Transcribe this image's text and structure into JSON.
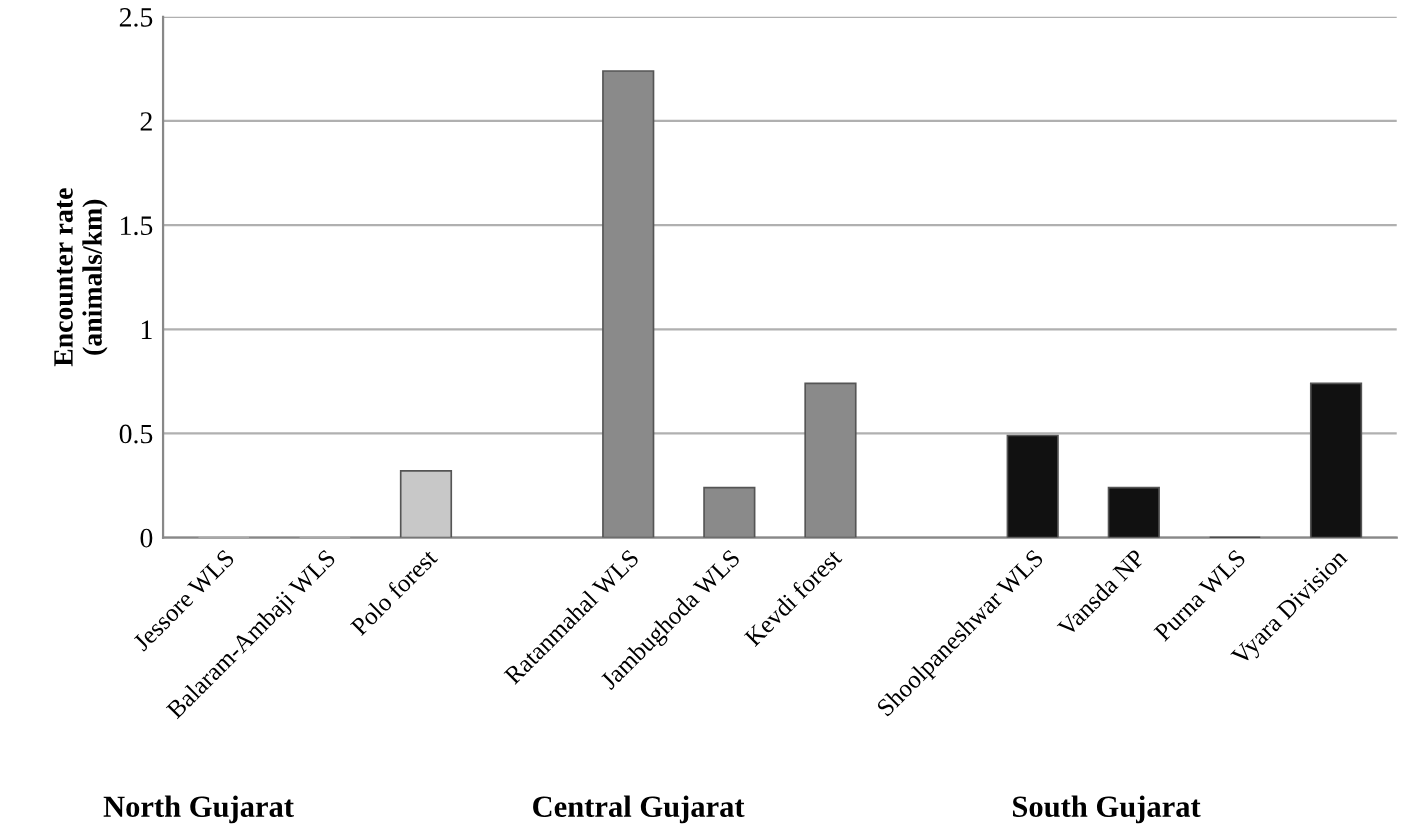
{
  "chart_data": {
    "type": "bar",
    "ylabel": "Encounter rate\n(animals/km)",
    "categories": [
      "Jessore WLS",
      "Balaram-Ambaji WLS",
      "Polo forest",
      null,
      "Ratanmahal WLS",
      "Jambughoda WLS",
      "Kevdi forest",
      null,
      "Shoolpaneshwar WLS",
      "Vansda NP",
      "Purna WLS",
      "Vyara Division"
    ],
    "values": [
      0,
      0,
      0.32,
      null,
      2.24,
      0.24,
      0.74,
      null,
      0.49,
      0.24,
      0,
      0.74
    ],
    "colors": [
      "#c8c8c8",
      "#c8c8c8",
      "#c8c8c8",
      null,
      "#8a8a8a",
      "#8a8a8a",
      "#8a8a8a",
      null,
      "#111111",
      "#111111",
      "#111111",
      "#111111"
    ],
    "ylim": [
      0,
      2.5
    ],
    "yticks": [
      0,
      0.5,
      1,
      1.5,
      2,
      2.5
    ],
    "grid": "y",
    "annotations": [
      "North Gujarat",
      "Central Gujarat",
      "South Gujarat"
    ]
  }
}
